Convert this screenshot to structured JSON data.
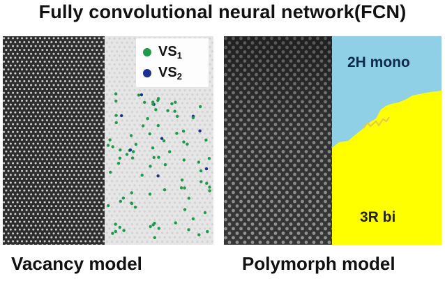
{
  "title": "Fully convolutional neural network(FCN)",
  "vacancy": {
    "caption": "Vacancy model",
    "legend": [
      {
        "label": "VS",
        "sub": "1",
        "color": "#1f9a4a",
        "icon": "green-dot-icon"
      },
      {
        "label": "VS",
        "sub": "2",
        "color": "#1a2f8f",
        "icon": "blue-dot-icon"
      }
    ]
  },
  "polymorph": {
    "caption": "Polymorph model",
    "region_top_label": "2H mono",
    "region_bottom_label": "3R bi",
    "colors": {
      "mono": "#8fd0e6",
      "bi": "#ffff00"
    }
  }
}
